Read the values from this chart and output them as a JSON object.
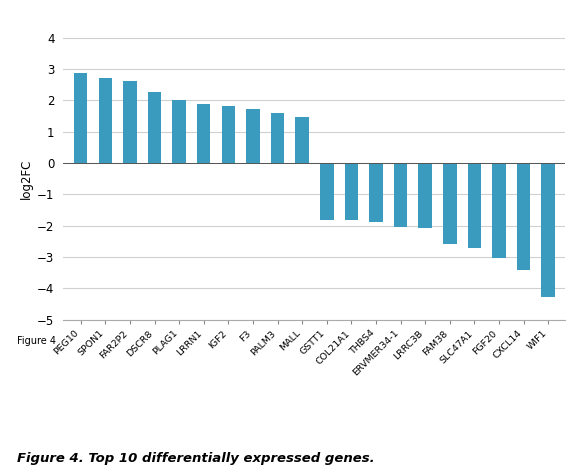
{
  "categories": [
    "PEG10",
    "SPON1",
    "FAR2P2",
    "DSCR8",
    "PLAG1",
    "LRRN1",
    "IGF2",
    "F3",
    "PALM3",
    "MALL",
    "GSTT1",
    "COL21A1",
    "THBS4",
    "ERVMER34-1",
    "LRRC3B",
    "FAM38",
    "SLC47A1",
    "FGF20",
    "CXCL14",
    "WIF1"
  ],
  "values": [
    2.88,
    2.7,
    2.63,
    2.25,
    2.0,
    1.88,
    1.83,
    1.72,
    1.58,
    1.47,
    -1.83,
    -1.83,
    -1.87,
    -2.05,
    -2.08,
    -2.6,
    -2.72,
    -3.02,
    -3.42,
    -4.28
  ],
  "bar_color": "#3a9bbf",
  "ylabel": "log2FC",
  "ylim": [
    -5,
    4
  ],
  "yticks": [
    -5,
    -4,
    -3,
    -2,
    -1,
    0,
    1,
    2,
    3,
    4
  ],
  "figure_label": "Figure 4",
  "caption": "Figure 4. Top 10 differentially expressed genes.",
  "grid_color": "#d0d0d0"
}
